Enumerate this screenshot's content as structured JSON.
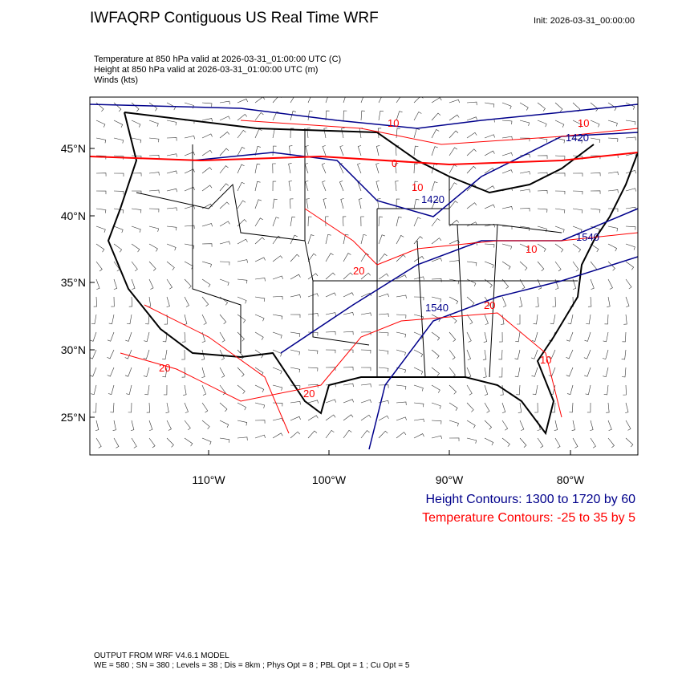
{
  "title": "IWFAQRP Contiguous US Real Time WRF",
  "init": "Init: 2026-03-31_00:00:00",
  "subtitles": [
    "Temperature at 850 hPa valid at 2026-03-31_01:00:00 UTC   (C)",
    "Height at 850 hPa valid at 2026-03-31_01:00:00 UTC   (m)",
    "Winds   (kts)"
  ],
  "lat_ticks": [
    "45°N",
    "40°N",
    "35°N",
    "30°N",
    "25°N"
  ],
  "lon_ticks": [
    "110°W",
    "100°W",
    "90°W",
    "80°W"
  ],
  "height_legend": "Height Contours: 1300 to 1720 by 60",
  "temp_legend": "Temperature Contours: -25 to 35 by 5",
  "footer": [
    "OUTPUT FROM WRF V4.6.1 MODEL",
    "WE = 580 ; SN = 380 ; Levels = 38 ; Dis = 8km ; Phys Opt = 8 ; PBL Opt = 1 ; Cu Opt = 5"
  ],
  "contour_labels": {
    "temp": [
      "10",
      "10",
      "0",
      "10",
      "20",
      "10",
      "20",
      "20",
      "20",
      "10"
    ],
    "height": [
      "1420",
      "1420",
      "1540",
      "1540"
    ]
  },
  "colors": {
    "height": "#00008b",
    "temp": "#ff0000"
  }
}
